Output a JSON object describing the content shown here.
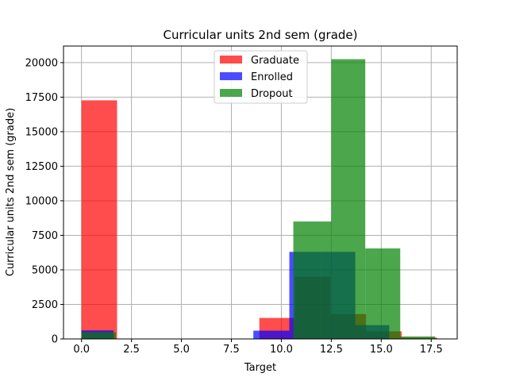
{
  "chart_data": {
    "type": "bar",
    "subtype": "overlapping-histogram",
    "title": "Curricular units 2nd sem (grade)",
    "xlabel": "Target",
    "ylabel": "Curricular units 2nd sem (grade)",
    "xlim": [
      -0.9,
      18.8
    ],
    "ylim": [
      0,
      21200
    ],
    "xticks": [
      0.0,
      2.5,
      5.0,
      7.5,
      10.0,
      12.5,
      15.0,
      17.5
    ],
    "xtick_labels": [
      "0.0",
      "2.5",
      "5.0",
      "7.5",
      "10.0",
      "12.5",
      "15.0",
      "17.5"
    ],
    "yticks": [
      0,
      2500,
      5000,
      7500,
      10000,
      12500,
      15000,
      17500,
      20000
    ],
    "ytick_labels": [
      "0",
      "2500",
      "5000",
      "7500",
      "10000",
      "12500",
      "15000",
      "17500",
      "20000"
    ],
    "grid": true,
    "legend_position": "upper-center",
    "opacity": 0.7,
    "series": [
      {
        "name": "Graduate",
        "color": "#ff0000",
        "bins": [
          {
            "x0": 0.0,
            "x1": 1.78,
            "count": 17270
          },
          {
            "x0": 8.9,
            "x1": 10.68,
            "count": 1520
          },
          {
            "x0": 10.68,
            "x1": 12.46,
            "count": 4500
          },
          {
            "x0": 12.46,
            "x1": 14.24,
            "count": 1800
          },
          {
            "x0": 14.24,
            "x1": 16.02,
            "count": 550
          },
          {
            "x0": 16.02,
            "x1": 17.8,
            "count": 90
          }
        ]
      },
      {
        "name": "Enrolled",
        "color": "#0000ff",
        "bins": [
          {
            "x0": 0.0,
            "x1": 1.6,
            "count": 620
          },
          {
            "x0": 8.6,
            "x1": 10.4,
            "count": 600
          },
          {
            "x0": 10.4,
            "x1": 12.0,
            "count": 6300
          },
          {
            "x0": 12.0,
            "x1": 13.7,
            "count": 6300
          },
          {
            "x0": 13.7,
            "x1": 15.4,
            "count": 1000
          }
        ]
      },
      {
        "name": "Dropout",
        "color": "#008000",
        "bins": [
          {
            "x0": 0.0,
            "x1": 1.72,
            "count": 480
          },
          {
            "x0": 10.6,
            "x1": 12.5,
            "count": 8500
          },
          {
            "x0": 12.5,
            "x1": 14.2,
            "count": 20250
          },
          {
            "x0": 14.2,
            "x1": 15.95,
            "count": 6550
          },
          {
            "x0": 15.95,
            "x1": 17.7,
            "count": 180
          }
        ]
      }
    ]
  }
}
